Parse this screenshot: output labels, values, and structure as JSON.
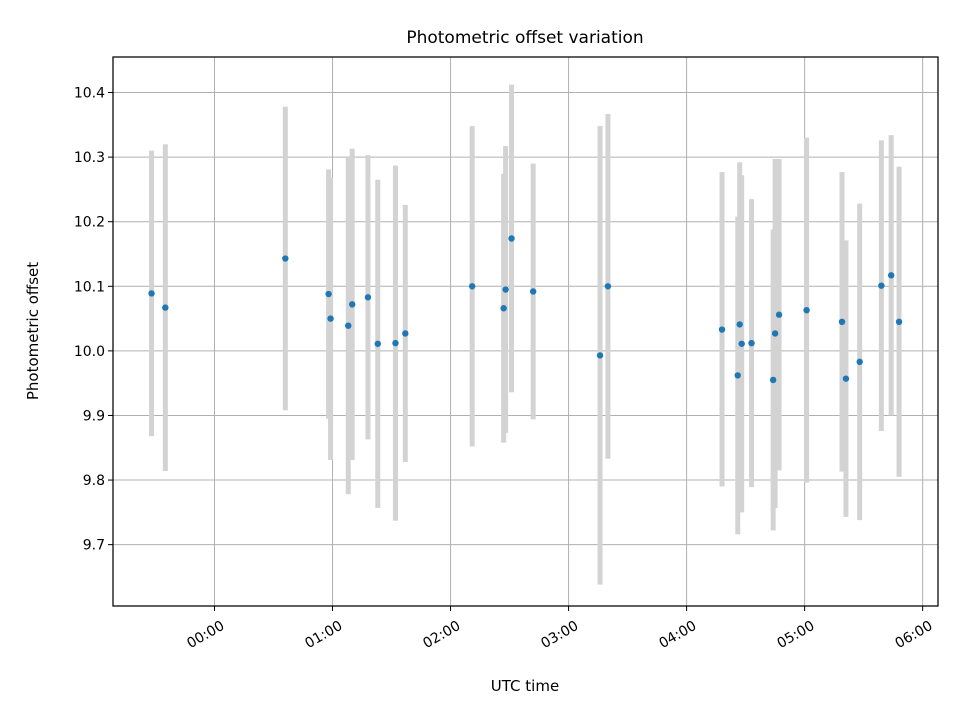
{
  "chart_data": {
    "type": "scatter",
    "title": "Photometric offset variation",
    "xlabel": "UTC time",
    "ylabel": "Photometric offset",
    "x_tick_labels": [
      "00:00",
      "01:00",
      "02:00",
      "03:00",
      "04:00",
      "05:00",
      "06:00"
    ],
    "x_ticks_hours": [
      0,
      1,
      2,
      3,
      4,
      5,
      6
    ],
    "y_ticks": [
      9.7,
      9.8,
      9.9,
      10.0,
      10.1,
      10.2,
      10.3,
      10.4
    ],
    "y_tick_labels": [
      "9.7",
      "9.8",
      "9.9",
      "10.0",
      "10.1",
      "10.2",
      "10.3",
      "10.4"
    ],
    "xlim_hours": [
      -0.86,
      6.13
    ],
    "ylim": [
      9.605,
      10.455
    ],
    "grid": true,
    "marker_color": "#1f77b4",
    "errorbar_color": "#d3d3d3",
    "points": [
      {
        "time": "23:28",
        "value": 10.089,
        "err_low": 9.868,
        "err_high": 10.31
      },
      {
        "time": "23:35",
        "value": 10.067,
        "err_low": 9.814,
        "err_high": 10.32
      },
      {
        "time": "00:36",
        "value": 10.143,
        "err_low": 9.908,
        "err_high": 10.378
      },
      {
        "time": "00:58",
        "value": 10.088,
        "err_low": 9.895,
        "err_high": 10.281
      },
      {
        "time": "00:59",
        "value": 10.05,
        "err_low": 9.831,
        "err_high": 10.269
      },
      {
        "time": "01:08",
        "value": 10.039,
        "err_low": 9.778,
        "err_high": 10.3
      },
      {
        "time": "01:10",
        "value": 10.072,
        "err_low": 9.831,
        "err_high": 10.313
      },
      {
        "time": "01:18",
        "value": 10.083,
        "err_low": 9.863,
        "err_high": 10.303
      },
      {
        "time": "01:23",
        "value": 10.011,
        "err_low": 9.757,
        "err_high": 10.265
      },
      {
        "time": "01:32",
        "value": 10.012,
        "err_low": 9.737,
        "err_high": 10.287
      },
      {
        "time": "01:37",
        "value": 10.027,
        "err_low": 9.828,
        "err_high": 10.226
      },
      {
        "time": "02:11",
        "value": 10.1,
        "err_low": 9.852,
        "err_high": 10.348
      },
      {
        "time": "02:27",
        "value": 10.066,
        "err_low": 9.858,
        "err_high": 10.274
      },
      {
        "time": "02:28",
        "value": 10.095,
        "err_low": 9.873,
        "err_high": 10.317
      },
      {
        "time": "02:31",
        "value": 10.174,
        "err_low": 9.936,
        "err_high": 10.412
      },
      {
        "time": "02:42",
        "value": 10.092,
        "err_low": 9.894,
        "err_high": 10.29
      },
      {
        "time": "03:16",
        "value": 9.993,
        "err_low": 9.638,
        "err_high": 10.348
      },
      {
        "time": "03:20",
        "value": 10.1,
        "err_low": 9.833,
        "err_high": 10.367
      },
      {
        "time": "04:18",
        "value": 10.033,
        "err_low": 9.79,
        "err_high": 10.277
      },
      {
        "time": "04:26",
        "value": 9.962,
        "err_low": 9.716,
        "err_high": 10.208
      },
      {
        "time": "04:27",
        "value": 10.041,
        "err_low": 9.79,
        "err_high": 10.292
      },
      {
        "time": "04:28",
        "value": 10.011,
        "err_low": 9.75,
        "err_high": 10.272
      },
      {
        "time": "04:33",
        "value": 10.012,
        "err_low": 9.789,
        "err_high": 10.235
      },
      {
        "time": "04:44",
        "value": 9.955,
        "err_low": 9.722,
        "err_high": 10.188
      },
      {
        "time": "04:45",
        "value": 10.027,
        "err_low": 9.757,
        "err_high": 10.297
      },
      {
        "time": "04:47",
        "value": 10.056,
        "err_low": 9.815,
        "err_high": 10.297
      },
      {
        "time": "05:01",
        "value": 10.063,
        "err_low": 9.796,
        "err_high": 10.33
      },
      {
        "time": "05:19",
        "value": 10.045,
        "err_low": 9.813,
        "err_high": 10.277
      },
      {
        "time": "05:21",
        "value": 9.957,
        "err_low": 9.743,
        "err_high": 10.171
      },
      {
        "time": "05:28",
        "value": 9.983,
        "err_low": 9.738,
        "err_high": 10.228
      },
      {
        "time": "05:39",
        "value": 10.101,
        "err_low": 9.876,
        "err_high": 10.326
      },
      {
        "time": "05:44",
        "value": 10.117,
        "err_low": 9.9,
        "err_high": 10.334
      },
      {
        "time": "05:48",
        "value": 10.045,
        "err_low": 9.805,
        "err_high": 10.285
      }
    ]
  }
}
